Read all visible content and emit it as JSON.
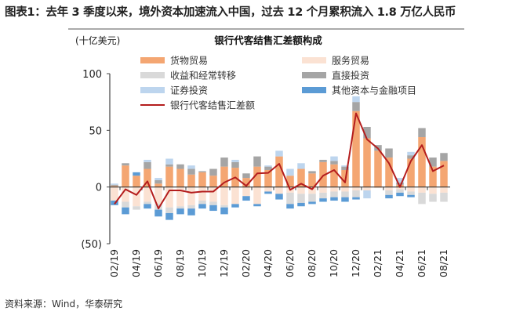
{
  "header": {
    "title": "图表1：去年 3 季度以来，境外资本加速流入中国，过去 12 个月累积流入 1.8 万亿人民币"
  },
  "footer": {
    "source": "资料来源：Wind，华泰研究"
  },
  "chart_data": {
    "type": "bar",
    "stacked": true,
    "title": "银行代客结售汇差额构成",
    "ylabel": "(十亿美元)",
    "xlabel": "",
    "ylim": [
      -50,
      100
    ],
    "yticks": [
      100,
      50,
      0,
      -50
    ],
    "ytick_labels": [
      "100",
      "50",
      "0",
      "(50)"
    ],
    "grid": false,
    "legend_placement": "top",
    "categories": [
      "02/19",
      "03/19",
      "04/19",
      "05/19",
      "06/19",
      "07/19",
      "08/19",
      "09/19",
      "10/19",
      "11/19",
      "12/19",
      "01/20",
      "02/20",
      "03/20",
      "04/20",
      "05/20",
      "06/20",
      "07/20",
      "08/20",
      "09/20",
      "10/20",
      "11/20",
      "12/20",
      "01/21",
      "02/21",
      "03/21",
      "04/21",
      "05/21",
      "06/21",
      "07/21",
      "08/21"
    ],
    "xtick_labels": [
      "02/19",
      "04/19",
      "06/19",
      "08/19",
      "10/19",
      "12/19",
      "02/20",
      "04/20",
      "06/20",
      "08/20",
      "10/20",
      "12/20",
      "02/21",
      "04/21",
      "06/21",
      "08/21"
    ],
    "series": [
      {
        "name": "货物贸易",
        "kind": "bar",
        "color": "#f4a672",
        "values": [
          1,
          19,
          10,
          16,
          3,
          18,
          16,
          11,
          13,
          10,
          18,
          17,
          8,
          18,
          15,
          27,
          10,
          16,
          12,
          22,
          20,
          15,
          67,
          43,
          32,
          26,
          2,
          25,
          44,
          18,
          23
        ]
      },
      {
        "name": "服务贸易",
        "kind": "bar",
        "color": "#fbe2d3",
        "values": [
          -12,
          -13,
          -17,
          -13,
          -15,
          -18,
          -17,
          -16,
          -12,
          -13,
          -16,
          -15,
          -8,
          -15,
          -4,
          -6,
          -5,
          -6,
          -6,
          -5,
          -4,
          -4,
          -3,
          -3,
          -1,
          -3,
          -2,
          -4,
          -5,
          -6,
          -5
        ]
      },
      {
        "name": "收益和经常转移",
        "kind": "bar",
        "color": "#d9d9d9",
        "values": [
          0,
          -5,
          -3,
          -2,
          -5,
          -5,
          -2,
          -3,
          -3,
          -3,
          -2,
          0,
          0,
          0,
          0,
          0,
          -10,
          -8,
          -7,
          -5,
          -5,
          -5,
          -6,
          0,
          0,
          -4,
          -3,
          -3,
          -10,
          -7,
          -8
        ]
      },
      {
        "name": "直接投资",
        "kind": "bar",
        "color": "#a5a5a5",
        "values": [
          1,
          2,
          0,
          6,
          3,
          2,
          4,
          5,
          1,
          6,
          8,
          5,
          4,
          9,
          3,
          0,
          0,
          0,
          2,
          2,
          3,
          3,
          8,
          10,
          5,
          8,
          2,
          3,
          8,
          8,
          7
        ]
      },
      {
        "name": "证券投资",
        "kind": "bar",
        "color": "#bdd5ee",
        "values": [
          1,
          0,
          0,
          2,
          2,
          5,
          0,
          3,
          0,
          0,
          0,
          2,
          0,
          0,
          1,
          5,
          6,
          5,
          0,
          0,
          4,
          1,
          5,
          -7,
          0,
          0,
          4,
          3,
          0,
          0,
          0
        ]
      },
      {
        "name": "其他资本与金融项目",
        "kind": "bar",
        "color": "#5b9bd5",
        "values": [
          -4,
          -6,
          3,
          -4,
          -6,
          -6,
          -5,
          -6,
          -4,
          -5,
          -6,
          -3,
          -4,
          -2,
          -2,
          -5,
          -4,
          -3,
          -2,
          -3,
          -3,
          -4,
          -2,
          0,
          0,
          -3,
          -3,
          -2,
          0,
          0,
          0
        ]
      },
      {
        "name": "银行代客结售汇差额",
        "kind": "line",
        "color": "#b41d1d",
        "values": [
          -15,
          -2,
          -7,
          5,
          -19,
          -3,
          -3,
          -5,
          -4,
          -4,
          4,
          8.5,
          1,
          12,
          12.5,
          20.5,
          -2.5,
          3,
          -2,
          10,
          15,
          4,
          65,
          42,
          34,
          21,
          0,
          23,
          37,
          14,
          19
        ]
      }
    ]
  }
}
